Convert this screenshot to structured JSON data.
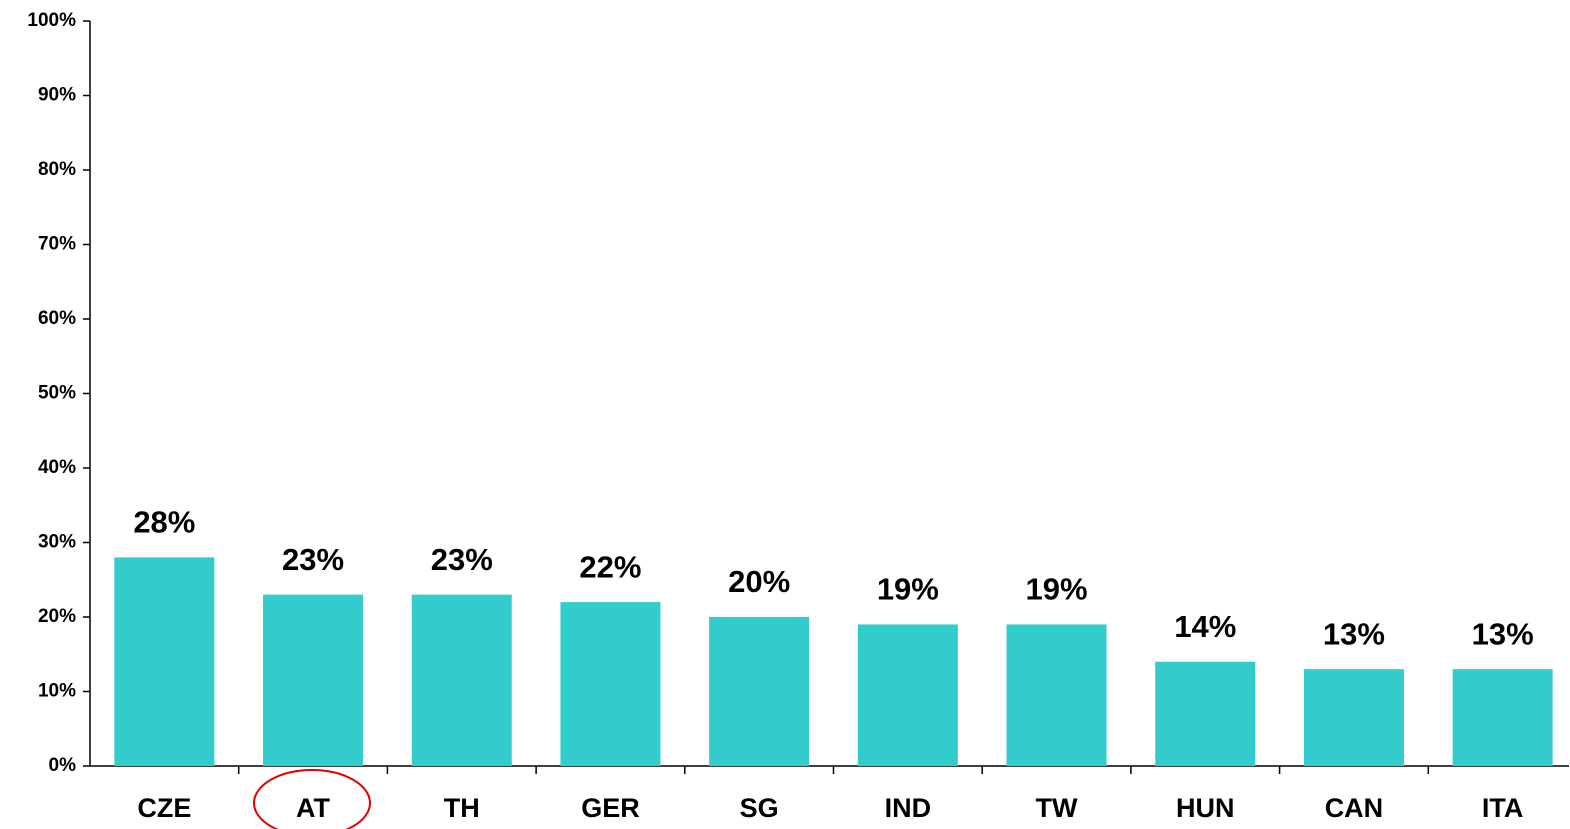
{
  "chart_data": {
    "type": "bar",
    "categories": [
      "CZE",
      "AT",
      "TH",
      "GER",
      "SG",
      "IND",
      "TW",
      "HUN",
      "CAN",
      "ITA"
    ],
    "values": [
      28,
      23,
      23,
      22,
      20,
      19,
      19,
      14,
      13,
      13
    ],
    "value_labels": [
      "28%",
      "23%",
      "23%",
      "22%",
      "20%",
      "19%",
      "19%",
      "14%",
      "13%",
      "13%"
    ],
    "color": "#33cccc",
    "ylim": [
      0,
      100
    ],
    "yticks": [
      {
        "value": 0,
        "label": "0%"
      },
      {
        "value": 10,
        "label": "10%"
      },
      {
        "value": 20,
        "label": "20%"
      },
      {
        "value": 30,
        "label": "30%"
      },
      {
        "value": 40,
        "label": "40%"
      },
      {
        "value": 50,
        "label": "50%"
      },
      {
        "value": 60,
        "label": "60%"
      },
      {
        "value": 70,
        "label": "70%"
      },
      {
        "value": 80,
        "label": "80%"
      },
      {
        "value": 90,
        "label": "90%"
      },
      {
        "value": 100,
        "label": "100%"
      }
    ],
    "grid": false
  }
}
